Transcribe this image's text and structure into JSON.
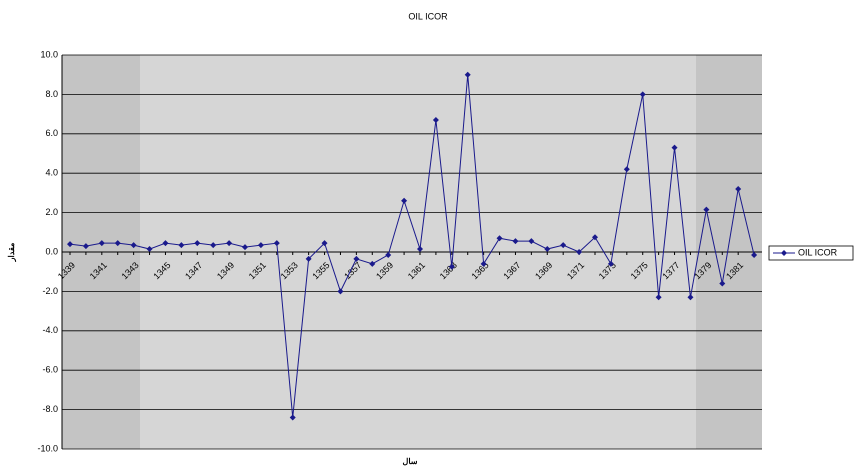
{
  "chart_data": {
    "type": "line",
    "title": "OIL ICOR",
    "x_label": "سال",
    "y_label": "مقدار",
    "categories": [
      "1339",
      null,
      "1341",
      null,
      "1343",
      null,
      "1345",
      null,
      "1347",
      null,
      "1349",
      null,
      "1351",
      null,
      "1353",
      null,
      "1355",
      null,
      "1357",
      null,
      "1359",
      null,
      "1361",
      null,
      "1363",
      null,
      "1365",
      null,
      "1367",
      null,
      "1369",
      null,
      "1371",
      null,
      "1373",
      null,
      "1375",
      null,
      "1377",
      null,
      "1379",
      null,
      "1381",
      null
    ],
    "series": [
      {
        "name": "OIL ICOR",
        "color": "#1a1a8c",
        "values": [
          0.4,
          0.3,
          0.45,
          0.45,
          0.35,
          0.15,
          0.45,
          0.35,
          0.45,
          0.35,
          0.45,
          0.25,
          0.35,
          0.45,
          -8.4,
          -0.35,
          0.45,
          -2.0,
          -0.35,
          -0.6,
          -0.15,
          2.6,
          0.15,
          6.7,
          -0.75,
          9.0,
          -0.6,
          0.7,
          0.55,
          0.55,
          0.15,
          0.35,
          0.0,
          0.75,
          -0.6,
          4.2,
          8.0,
          -2.3,
          5.3,
          -2.3,
          2.15,
          -1.6,
          3.2,
          -0.15
        ]
      }
    ],
    "ylim": [
      -10,
      10
    ],
    "yticks": [
      {
        "value": -10,
        "label": "-10.0"
      },
      {
        "value": -8,
        "label": "-8.0"
      },
      {
        "value": -6,
        "label": "-6.0"
      },
      {
        "value": -4,
        "label": "-4.0"
      },
      {
        "value": -2,
        "label": "-2.0"
      },
      {
        "value": 0,
        "label": "0.0"
      },
      {
        "value": 2,
        "label": "2.0"
      },
      {
        "value": 4,
        "label": "4.0"
      },
      {
        "value": 6,
        "label": "6.0"
      },
      {
        "value": 8,
        "label": "8.0"
      },
      {
        "value": 10,
        "label": "10.0"
      }
    ],
    "grid": true,
    "legend": "right"
  }
}
